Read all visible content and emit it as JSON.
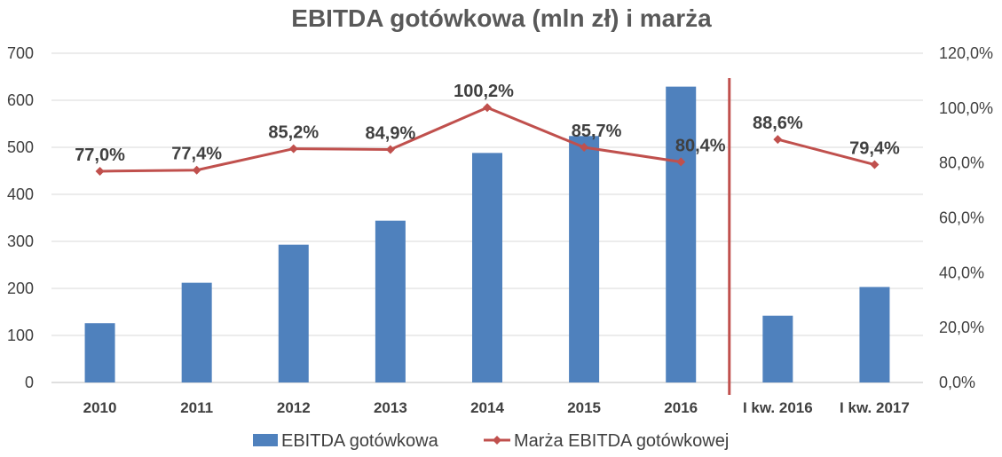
{
  "chart_data": {
    "type": "bar+line",
    "title": "EBITDA gotówkowa (mln zł) i marża",
    "categories": [
      "2010",
      "2011",
      "2012",
      "2013",
      "2014",
      "2015",
      "2016",
      "I kw. 2016",
      "I kw. 2017"
    ],
    "series": [
      {
        "name": "EBITDA gotówkowa",
        "type": "bar",
        "axis": "left",
        "color": "#4F81BD",
        "values": [
          126,
          212,
          293,
          344,
          488,
          524,
          629,
          142,
          203
        ]
      },
      {
        "name": "Marża EBITDA gotówkowej",
        "type": "line",
        "axis": "right",
        "color": "#C0504D",
        "values": [
          77.0,
          77.4,
          85.2,
          84.9,
          100.2,
          85.7,
          80.4,
          88.6,
          79.4
        ],
        "labels": [
          "77,0%",
          "77,4%",
          "85,2%",
          "84,9%",
          "100,2%",
          "85,7%",
          "80,4%",
          "88,6%",
          "79,4%"
        ]
      }
    ],
    "y_left": {
      "min": 0,
      "max": 700,
      "step": 100,
      "tick_labels": [
        "0",
        "100",
        "200",
        "300",
        "400",
        "500",
        "600",
        "700"
      ]
    },
    "y_right": {
      "min": 0,
      "max": 120,
      "step": 20,
      "tick_labels": [
        "0,0%",
        "20,0%",
        "40,0%",
        "60,0%",
        "80,0%",
        "100,0%",
        "120,0%"
      ]
    },
    "separator_after_category": 6,
    "separator_color": "#C0504D",
    "grid": true,
    "legend_position": "bottom"
  }
}
